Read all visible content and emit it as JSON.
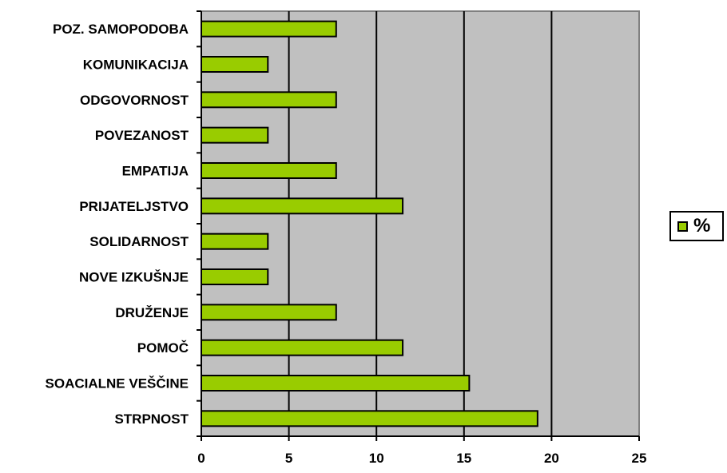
{
  "chart_data": {
    "type": "bar",
    "orientation": "horizontal",
    "categories": [
      "POZ. SAMOPODOBA",
      "KOMUNIKACIJA",
      "ODGOVORNOST",
      "POVEZANOST",
      "EMPATIJA",
      "PRIJATELJSTVO",
      "SOLIDARNOST",
      "NOVE IZKUŠNJE",
      "DRUŽENJE",
      "POMOČ",
      "SOACIALNE VEŠČINE",
      "STRPNOST"
    ],
    "series": [
      {
        "name": "%",
        "values": [
          7.7,
          3.8,
          7.7,
          3.8,
          7.7,
          11.5,
          3.8,
          3.8,
          7.7,
          11.5,
          15.3,
          19.2
        ]
      }
    ],
    "xlim": [
      0,
      25
    ],
    "xticks": [
      "0",
      "5",
      "10",
      "15",
      "20",
      "25"
    ],
    "grid": true,
    "legend_position": "right",
    "bar_color": "#99cc00",
    "plot_background": "#c0c0c0"
  }
}
